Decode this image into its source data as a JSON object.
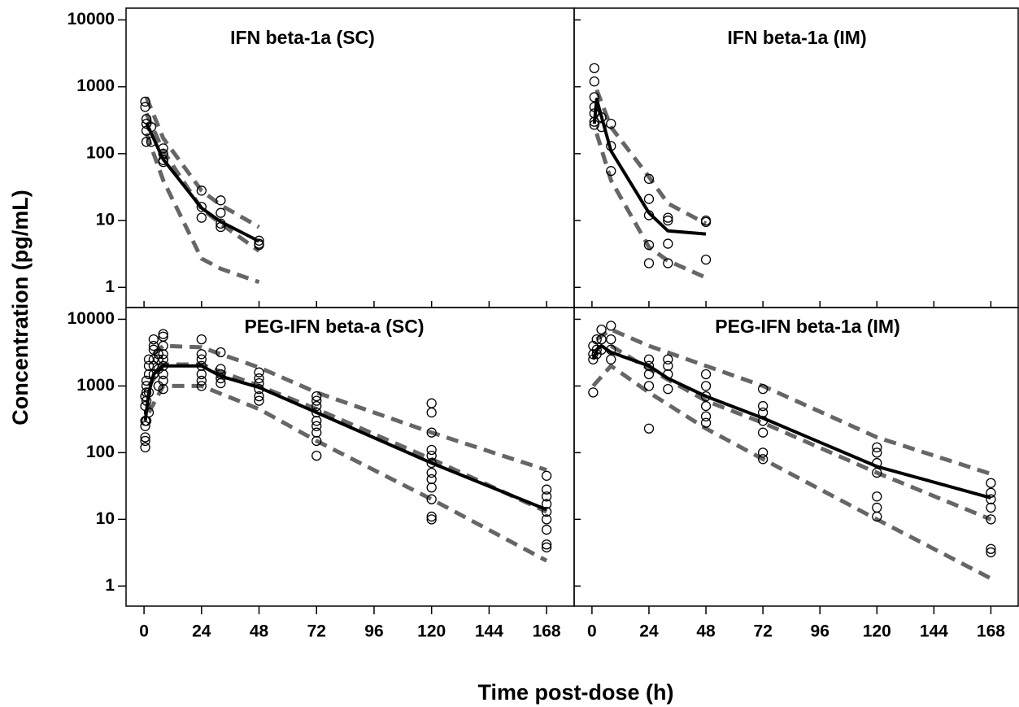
{
  "xlabel": "Time post-dose (h)",
  "ylabel": "Concentration (pg/mL)",
  "chart_data": [
    {
      "type": "scatter",
      "title": "IFN beta-1a (SC)",
      "log_y": true,
      "xlim": [
        -7.5,
        179.5
      ],
      "ylim": [
        0.5,
        15000
      ],
      "xticks": [
        0,
        24,
        48,
        72,
        96,
        120,
        144,
        168
      ],
      "yticks": [
        1,
        10,
        100,
        1000,
        10000
      ],
      "points": {
        "x": [
          0.5,
          0.5,
          1,
          1,
          1,
          1,
          3,
          3,
          8,
          8,
          8,
          8,
          24,
          24,
          24,
          32,
          32,
          32,
          32,
          48,
          48,
          48
        ],
        "y": [
          600,
          500,
          330,
          280,
          220,
          150,
          250,
          150,
          120,
          100,
          80,
          75,
          28,
          16,
          11,
          20,
          13,
          9,
          8,
          5,
          4.5,
          4.3
        ]
      },
      "series": [
        {
          "color": "#666666",
          "dash": true,
          "x": [
            1,
            8,
            24,
            32,
            48
          ],
          "values": [
            700,
            170,
            28,
            17,
            8
          ]
        },
        {
          "color": "#666666",
          "dash": true,
          "x": [
            1,
            8,
            24,
            32,
            48
          ],
          "values": [
            400,
            110,
            15,
            9,
            3.5
          ]
        },
        {
          "color": "#666666",
          "dash": true,
          "x": [
            1,
            8,
            24,
            32,
            48
          ],
          "values": [
            200,
            40,
            2.7,
            1.9,
            1.2
          ]
        },
        {
          "color": "#000000",
          "dash": false,
          "x": [
            1,
            8,
            24,
            32,
            48
          ],
          "values": [
            290,
            82,
            15.4,
            9.6,
            4.9
          ]
        }
      ]
    },
    {
      "type": "scatter",
      "title": "IFN beta-1a (IM)",
      "log_y": true,
      "xlim": [
        -7.5,
        179.5
      ],
      "ylim": [
        0.5,
        15000
      ],
      "xticks": [
        0,
        24,
        48,
        72,
        96,
        120,
        144,
        168
      ],
      "yticks": [
        1,
        10,
        100,
        1000,
        10000
      ],
      "points": {
        "x": [
          1,
          1,
          1,
          1,
          1,
          1,
          1,
          4,
          4,
          8,
          8,
          8,
          24,
          24,
          24,
          24,
          24,
          32,
          32,
          32,
          32,
          48,
          48,
          48
        ],
        "y": [
          1900,
          1200,
          700,
          500,
          400,
          300,
          270,
          250,
          350,
          280,
          130,
          55,
          42,
          21,
          12,
          4.3,
          2.3,
          11,
          10,
          4.5,
          2.3,
          10,
          9.5,
          2.6
        ]
      },
      "series": [
        {
          "color": "#666666",
          "dash": true,
          "x": [
            2,
            8,
            24,
            32,
            48
          ],
          "values": [
            900,
            250,
            45,
            18,
            9
          ]
        },
        {
          "color": "#666666",
          "dash": true,
          "x": [
            2,
            8,
            24,
            32,
            48
          ],
          "values": [
            200,
            40,
            4,
            2.5,
            1.4
          ]
        },
        {
          "color": "#000000",
          "dash": false,
          "x": [
            1,
            2,
            8,
            24,
            32,
            48
          ],
          "values": [
            280,
            650,
            110,
            13,
            7,
            6.3
          ]
        }
      ]
    },
    {
      "type": "scatter",
      "title": "PEG-IFN beta-a (SC)",
      "log_y": true,
      "xlim": [
        -7.5,
        179.5
      ],
      "ylim": [
        0.5,
        15000
      ],
      "xticks": [
        0,
        24,
        48,
        72,
        96,
        120,
        144,
        168
      ],
      "yticks": [
        1,
        10,
        100,
        1000,
        10000
      ],
      "points": {
        "x": [
          0.5,
          0.5,
          0.5,
          0.5,
          0.5,
          0.5,
          0.5,
          1,
          1,
          1,
          1,
          1,
          2,
          2,
          2,
          2,
          2,
          4,
          4,
          4,
          4,
          4,
          4,
          6,
          6,
          6,
          6,
          8,
          8,
          8,
          8,
          8,
          8,
          8,
          8,
          8,
          24,
          24,
          24,
          24,
          24,
          24,
          24,
          32,
          32,
          32,
          32,
          32,
          48,
          48,
          48,
          48,
          48,
          48,
          72,
          72,
          72,
          72,
          72,
          72,
          72,
          72,
          72,
          120,
          120,
          120,
          120,
          120,
          120,
          120,
          120,
          120,
          120,
          120,
          120,
          168,
          168,
          168,
          168,
          168,
          168,
          168,
          168,
          168
        ],
        "y": [
          120,
          150,
          170,
          250,
          300,
          500,
          700,
          300,
          600,
          800,
          1000,
          1200,
          400,
          800,
          1500,
          2000,
          2500,
          1500,
          2500,
          3500,
          5000,
          4000,
          2000,
          1000,
          1800,
          2500,
          3000,
          900,
          1200,
          1500,
          2000,
          3000,
          4000,
          5500,
          6000,
          2500,
          1000,
          1200,
          1500,
          2000,
          2500,
          3000,
          5000,
          1100,
          1300,
          1500,
          1800,
          3200,
          600,
          700,
          900,
          1100,
          1300,
          1600,
          90,
          150,
          200,
          250,
          300,
          400,
          500,
          600,
          700,
          10,
          11,
          20,
          30,
          40,
          50,
          70,
          90,
          110,
          200,
          400,
          550,
          3.8,
          4.2,
          7,
          10,
          13,
          17,
          22,
          28,
          45
        ]
      },
      "series": [
        {
          "color": "#666666",
          "dash": true,
          "x": [
            4,
            8,
            24,
            32,
            48,
            72,
            120,
            168
          ],
          "values": [
            3000,
            4000,
            3800,
            3000,
            1900,
            800,
            200,
            55
          ]
        },
        {
          "color": "#666666",
          "dash": true,
          "x": [
            2,
            8,
            24,
            48,
            72,
            120,
            168
          ],
          "values": [
            1000,
            2100,
            2100,
            1000,
            450,
            80,
            13
          ]
        },
        {
          "color": "#666666",
          "dash": true,
          "x": [
            2,
            8,
            24,
            48,
            72,
            120,
            168
          ],
          "values": [
            400,
            1000,
            1000,
            450,
            150,
            20,
            2.4
          ]
        },
        {
          "color": "#000000",
          "dash": false,
          "x": [
            0.5,
            2,
            4,
            8,
            24,
            32,
            48,
            72,
            120,
            168
          ],
          "values": [
            300,
            800,
            1500,
            2000,
            2000,
            1400,
            950,
            400,
            70,
            14
          ]
        }
      ]
    },
    {
      "type": "scatter",
      "title": "PEG-IFN beta-1a (IM)",
      "log_y": true,
      "xlim": [
        -7.5,
        179.5
      ],
      "ylim": [
        0.5,
        15000
      ],
      "xticks": [
        0,
        24,
        48,
        72,
        96,
        120,
        144,
        168
      ],
      "yticks": [
        1,
        10,
        100,
        1000,
        10000
      ],
      "points": {
        "x": [
          0.5,
          0.5,
          0.5,
          0.5,
          2,
          2,
          2,
          4,
          4,
          4,
          8,
          8,
          8,
          8,
          24,
          24,
          24,
          24,
          24,
          32,
          32,
          32,
          32,
          48,
          48,
          48,
          48,
          48,
          48,
          72,
          72,
          72,
          72,
          72,
          72,
          72,
          120,
          120,
          120,
          120,
          120,
          120,
          120,
          168,
          168,
          168,
          168,
          168,
          168,
          168
        ],
        "y": [
          800,
          2500,
          3000,
          4000,
          3000,
          3500,
          5000,
          3500,
          5000,
          7000,
          2500,
          3500,
          5000,
          8000,
          230,
          1000,
          1500,
          2000,
          2500,
          900,
          1500,
          2000,
          2500,
          280,
          350,
          500,
          700,
          1000,
          1500,
          80,
          100,
          200,
          300,
          400,
          500,
          900,
          11,
          15,
          22,
          50,
          70,
          100,
          120,
          3.2,
          3.6,
          10,
          15,
          20,
          25,
          35
        ]
      },
      "series": [
        {
          "color": "#666666",
          "dash": true,
          "x": [
            2,
            8,
            24,
            48,
            72,
            120,
            168
          ],
          "values": [
            5000,
            7000,
            4000,
            2000,
            1000,
            170,
            48
          ]
        },
        {
          "color": "#666666",
          "dash": true,
          "x": [
            8,
            24,
            48,
            72,
            120,
            168
          ],
          "values": [
            4000,
            1800,
            600,
            280,
            50,
            10
          ]
        },
        {
          "color": "#666666",
          "dash": true,
          "x": [
            0.5,
            8,
            24,
            48,
            72,
            120,
            168
          ],
          "values": [
            1000,
            2000,
            800,
            230,
            80,
            10,
            1.3
          ]
        },
        {
          "color": "#000000",
          "dash": false,
          "x": [
            0.5,
            2,
            4,
            8,
            24,
            32,
            48,
            72,
            120,
            168
          ],
          "values": [
            2500,
            3500,
            4000,
            3200,
            2000,
            1300,
            700,
            330,
            62,
            21
          ]
        }
      ]
    }
  ]
}
